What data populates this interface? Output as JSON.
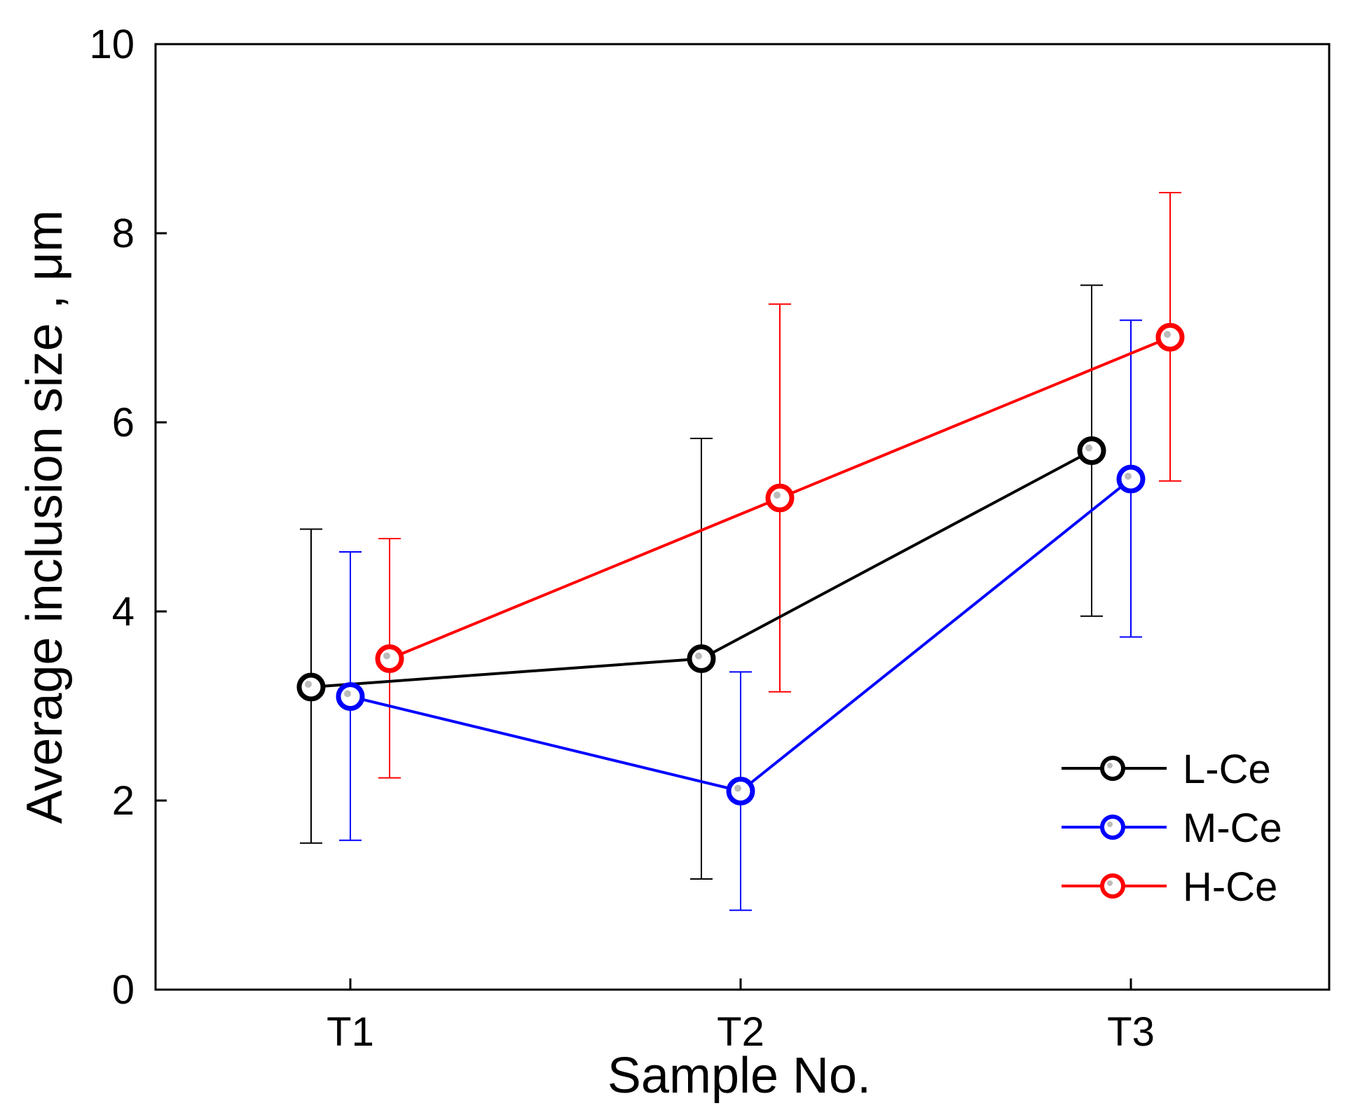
{
  "chart_data": {
    "type": "line",
    "title": "",
    "xlabel": "Sample No.",
    "ylabel": "Average inclusion size , μm",
    "categories": [
      "T1",
      "T2",
      "T3"
    ],
    "ylim": [
      0,
      10
    ],
    "yticks": [
      "0",
      "2",
      "4",
      "6",
      "8",
      "10"
    ],
    "grid": false,
    "legend_position": "bottom-right",
    "series": [
      {
        "name": "L-Ce",
        "color": "#000000",
        "offset": -0.1,
        "values": [
          3.2,
          3.5,
          5.7
        ],
        "err_low": [
          1.55,
          1.17,
          3.95
        ],
        "err_high": [
          4.87,
          5.83,
          7.45
        ]
      },
      {
        "name": "M-Ce",
        "color": "#0000ff",
        "offset": 0.0,
        "values": [
          3.1,
          2.1,
          5.4
        ],
        "err_low": [
          1.58,
          0.84,
          3.73
        ],
        "err_high": [
          4.63,
          3.36,
          7.08
        ]
      },
      {
        "name": "H-Ce",
        "color": "#ff0000",
        "offset": 0.1,
        "values": [
          3.5,
          5.2,
          6.9
        ],
        "err_low": [
          2.24,
          3.15,
          5.38
        ],
        "err_high": [
          4.77,
          7.25,
          8.43
        ]
      }
    ]
  }
}
